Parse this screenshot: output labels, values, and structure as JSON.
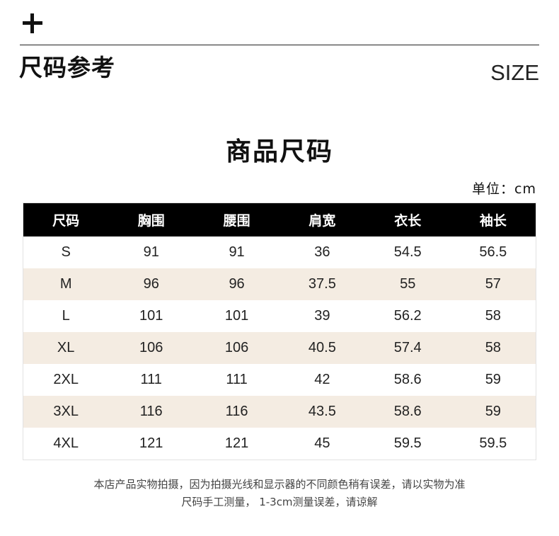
{
  "header": {
    "title": "尺码参考",
    "subtitle_en": "SIZE"
  },
  "table_title": "商品尺码",
  "unit": "单位：cm",
  "table": {
    "columns": [
      "尺码",
      "胸围",
      "腰围",
      "肩宽",
      "衣长",
      "袖长"
    ],
    "rows": [
      [
        "S",
        "91",
        "91",
        "36",
        "54.5",
        "56.5"
      ],
      [
        "M",
        "96",
        "96",
        "37.5",
        "55",
        "57"
      ],
      [
        "L",
        "101",
        "101",
        "39",
        "56.2",
        "58"
      ],
      [
        "XL",
        "106",
        "106",
        "40.5",
        "57.4",
        "58"
      ],
      [
        "2XL",
        "111",
        "111",
        "42",
        "58.6",
        "59"
      ],
      [
        "3XL",
        "116",
        "116",
        "43.5",
        "58.6",
        "59"
      ],
      [
        "4XL",
        "121",
        "121",
        "45",
        "59.5",
        "59.5"
      ]
    ]
  },
  "notes": {
    "line1": "本店产品实物拍摄，因为拍摄光线和显示器的不同颜色稍有误差，请以实物为准",
    "line2": "尺码手工测量， 1-3cm测量误差，请谅解"
  },
  "colors": {
    "header_bg": "#000000",
    "row_shade": "#f4ece2",
    "text": "#111111"
  },
  "icons": {
    "top_left": "plus-icon"
  }
}
